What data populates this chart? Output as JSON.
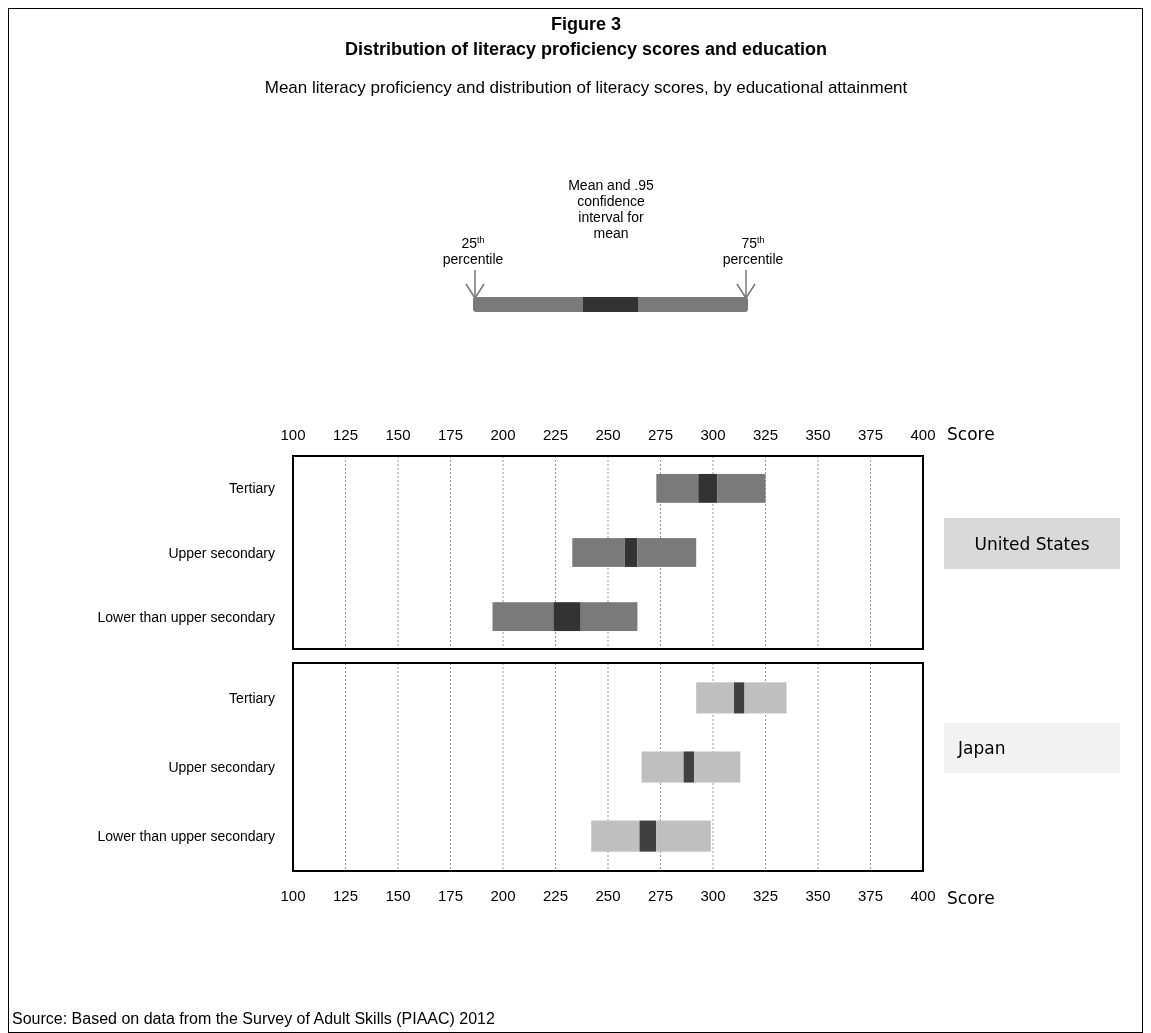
{
  "chart_data": [
    {
      "type": "bar",
      "orientation": "horizontal",
      "title": "Figure 3",
      "subtitle": "Distribution of literacy proficiency scores and education",
      "xlabel": "Score",
      "categories": [
        "Tertiary",
        "Upper secondary",
        "Lower than upper secondary"
      ],
      "xlim": [
        100,
        400
      ],
      "xticks": [
        100,
        125,
        150,
        175,
        200,
        225,
        250,
        275,
        300,
        325,
        350,
        375,
        400
      ],
      "grid": "x",
      "series": [
        {
          "color": "#7a7a7a",
          "base": [
            273,
            233,
            195
          ],
          "values": [
            20,
            25,
            29
          ]
        },
        {
          "color": "#333333",
          "base": [
            293,
            258,
            224
          ],
          "values": [
            9,
            6,
            13
          ]
        },
        {
          "color": "#7a7a7a",
          "base": [
            302,
            264,
            237
          ],
          "values": [
            23,
            28,
            27
          ]
        }
      ],
      "annotations": [
        "Mean literacy proficiency and distribution of literacy scores, by educational attainment",
        "25$^{th}$ percentile",
        "Mean and .95 confidence interval for mean",
        "75$^{th}$ percentile",
        "United States"
      ]
    },
    {
      "type": "bar",
      "orientation": "horizontal",
      "xlabel": "Score",
      "categories": [
        "Tertiary",
        "Upper secondary",
        "Lower than upper secondary"
      ],
      "xlim": [
        100,
        400
      ],
      "xticks": [
        100,
        125,
        150,
        175,
        200,
        225,
        250,
        275,
        300,
        325,
        350,
        375,
        400
      ],
      "grid": "x",
      "series": [
        {
          "color": "#bfbfbf",
          "base": [
            292,
            266,
            242
          ],
          "values": [
            18,
            20,
            23
          ]
        },
        {
          "color": "#404040",
          "base": [
            310,
            286,
            265
          ],
          "values": [
            5,
            5,
            8
          ]
        },
        {
          "color": "#bfbfbf",
          "base": [
            315,
            291,
            273
          ],
          "values": [
            20,
            22,
            26
          ]
        }
      ],
      "annotations": [
        "Japan",
        "Source: Based on data from the Survey of Adult Skills (PIAAC) 2012"
      ]
    }
  ]
}
